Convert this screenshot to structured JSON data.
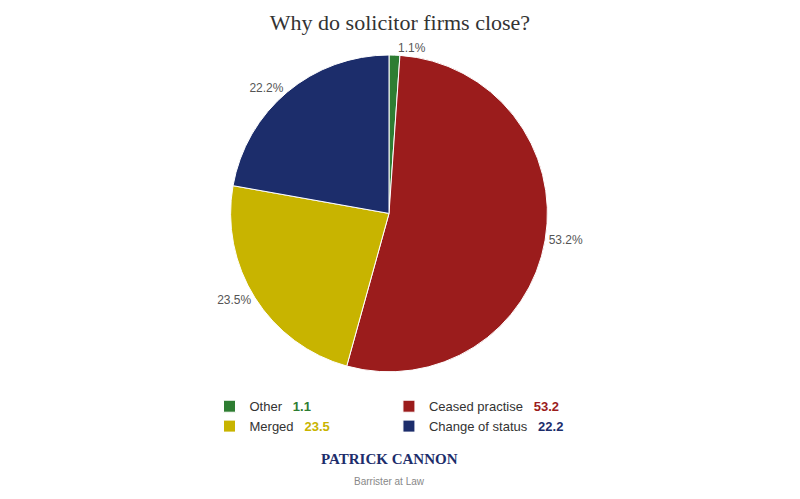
{
  "chart_data": {
    "type": "pie",
    "title": "Why do solicitor firms close?",
    "categories": [
      "Other",
      "Ceased practise",
      "Merged",
      "Change of status"
    ],
    "values": [
      1.1,
      53.2,
      23.5,
      22.2
    ],
    "value_labels": [
      "1.1%",
      "53.2%",
      "23.5%",
      "22.2%"
    ],
    "colors": [
      "#2E7D32",
      "#9B1C1C",
      "#C8B400",
      "#1C2D6B"
    ],
    "data_labels": true,
    "legend": "bottom",
    "annotations": [
      "PATRICK CANNON",
      "Barrister at Law"
    ]
  }
}
